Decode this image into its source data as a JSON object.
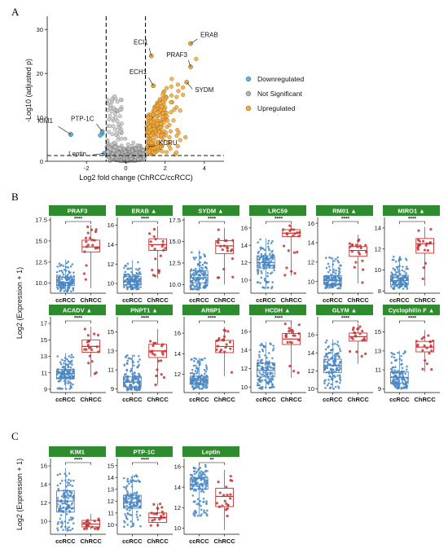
{
  "panels": {
    "a": "A",
    "b": "B",
    "c": "C"
  },
  "colors": {
    "down": "#5bb8dd",
    "ns": "#b0b0b0",
    "up": "#f2a93b",
    "strip": "#2e8b2e",
    "cc_box": "#4a86c2",
    "ch_box": "#c83232",
    "cc_point": "#4a86c2",
    "ch_point": "#c83232"
  },
  "chart_data": [
    {
      "type": "scatter",
      "panel": "A",
      "xlabel": "Log2 fold change (ChRCC/ccRCC)",
      "ylabel": "-Log10 (adjusted p)",
      "xlim": [
        -4,
        5
      ],
      "ylim": [
        0,
        33
      ],
      "x_ticks": [
        -2,
        0,
        2,
        4
      ],
      "y_ticks": [
        0,
        10,
        20,
        30
      ],
      "thresholds": {
        "x": [
          -1,
          1
        ],
        "y": 1.3
      },
      "legend": {
        "placement": "right",
        "items": [
          {
            "label": "Downregulated",
            "color_key": "down"
          },
          {
            "label": "Not Significant",
            "color_key": "ns"
          },
          {
            "label": "Upregulated",
            "color_key": "up"
          }
        ]
      },
      "labeled_points": [
        {
          "label": "ERAB",
          "x": 3.3,
          "y": 26.8
        },
        {
          "label": "ECI1",
          "x": 1.3,
          "y": 24.0
        },
        {
          "label": "PRAF3",
          "x": 3.3,
          "y": 21.5
        },
        {
          "label": "ECH1",
          "x": 1.4,
          "y": 17.2
        },
        {
          "label": "SYDM",
          "x": 3.1,
          "y": 18.0
        },
        {
          "label": "KIM1",
          "x": -2.8,
          "y": 6.1
        },
        {
          "label": "PTP-1C",
          "x": -1.2,
          "y": 6.8
        },
        {
          "label": "KCRU",
          "x": 1.1,
          "y": 3.3
        },
        {
          "label": "Leptin",
          "x": -1.1,
          "y": 1.8
        }
      ]
    },
    {
      "type": "box",
      "panel": "B",
      "ylabel": "Log2 (Expression + 1)",
      "groups": [
        "ccRCC",
        "ChRCC"
      ],
      "facets": [
        {
          "name": "PRAF3",
          "ylim": [
            8.8,
            17.8
          ],
          "ticks": [
            10.0,
            12.5,
            15.0,
            17.5
          ],
          "tick_labels": [
            "10.0",
            "12.5",
            "15.0",
            "17.5"
          ],
          "sig": "****",
          "ccRCC": {
            "min": 9.0,
            "q1": 9.7,
            "median": 10.1,
            "q3": 10.7,
            "max": 12.8
          },
          "ChRCC": {
            "min": 9.4,
            "q1": 13.7,
            "median": 14.3,
            "q3": 15.1,
            "max": 16.9
          }
        },
        {
          "name": "ERAB ▲",
          "ylim": [
            9.0,
            16.8
          ],
          "ticks": [
            10,
            12,
            14,
            16
          ],
          "tick_labels": [
            "10",
            "12",
            "14",
            "16"
          ],
          "sig": "****",
          "ccRCC": {
            "min": 9.4,
            "q1": 9.9,
            "median": 10.2,
            "q3": 10.7,
            "max": 12.4
          },
          "ChRCC": {
            "min": 10.5,
            "q1": 13.4,
            "median": 14.0,
            "q3": 14.6,
            "max": 15.9
          }
        },
        {
          "name": "SYDM ▲",
          "ylim": [
            9.0,
            17.8
          ],
          "ticks": [
            10.0,
            12.5,
            15.0,
            17.5
          ],
          "tick_labels": [
            "10.0",
            "12.5",
            "15.0",
            "17.5"
          ],
          "sig": "****",
          "ccRCC": {
            "min": 9.4,
            "q1": 10.2,
            "median": 10.8,
            "q3": 11.6,
            "max": 14.0
          },
          "ChRCC": {
            "min": 10.0,
            "q1": 13.6,
            "median": 14.5,
            "q3": 15.1,
            "max": 16.6
          }
        },
        {
          "name": "LRC59",
          "ylim": [
            8.5,
            17.2
          ],
          "ticks": [
            10,
            12,
            14,
            16
          ],
          "tick_labels": [
            "10",
            "12",
            "14",
            "16"
          ],
          "sig": "****",
          "ccRCC": {
            "min": 9.0,
            "q1": 11.4,
            "median": 12.0,
            "q3": 12.8,
            "max": 14.8
          },
          "ChRCC": {
            "min": 10.5,
            "q1": 15.0,
            "median": 15.4,
            "q3": 15.8,
            "max": 16.4
          }
        },
        {
          "name": "RM01 ▲",
          "ylim": [
            8.8,
            16.6
          ],
          "ticks": [
            10,
            12,
            14,
            16
          ],
          "tick_labels": [
            "10",
            "12",
            "14",
            "16"
          ],
          "sig": "****",
          "ccRCC": {
            "min": 9.3,
            "q1": 9.7,
            "median": 10.1,
            "q3": 10.6,
            "max": 12.5
          },
          "ChRCC": {
            "min": 9.8,
            "q1": 12.6,
            "median": 13.2,
            "q3": 13.6,
            "max": 14.8
          }
        },
        {
          "name": "MIRO1 ▲",
          "ylim": [
            7.8,
            15.0
          ],
          "ticks": [
            8,
            10,
            12,
            14
          ],
          "tick_labels": [
            "8",
            "10",
            "12",
            "14"
          ],
          "sig": "****",
          "ccRCC": {
            "min": 8.2,
            "q1": 8.6,
            "median": 9.0,
            "q3": 9.5,
            "max": 11.3
          },
          "ChRCC": {
            "min": 8.5,
            "q1": 11.6,
            "median": 12.5,
            "q3": 13.0,
            "max": 14.1
          }
        },
        {
          "name": "ACADV ▲",
          "ylim": [
            8.6,
            17.8
          ],
          "ticks": [
            9,
            11,
            13,
            15,
            17
          ],
          "tick_labels": [
            "9",
            "11",
            "13",
            "15",
            "17"
          ],
          "sig": "****",
          "ccRCC": {
            "min": 9.0,
            "q1": 10.3,
            "median": 10.9,
            "q3": 11.4,
            "max": 13.4
          },
          "ChRCC": {
            "min": 10.5,
            "q1": 13.5,
            "median": 14.2,
            "q3": 15.0,
            "max": 16.6
          }
        },
        {
          "name": "PNPT1 ▲",
          "ylim": [
            8.6,
            16.6
          ],
          "ticks": [
            9,
            11,
            13,
            15
          ],
          "tick_labels": [
            "9",
            "11",
            "13",
            "15"
          ],
          "sig": "****",
          "ccRCC": {
            "min": 8.8,
            "q1": 9.2,
            "median": 9.7,
            "q3": 10.3,
            "max": 12.6
          },
          "ChRCC": {
            "min": 9.4,
            "q1": 12.3,
            "median": 13.0,
            "q3": 13.7,
            "max": 15.3
          }
        },
        {
          "name": "AR6P1",
          "ylim": [
            10.2,
            17.6
          ],
          "ticks": [
            12,
            14,
            16
          ],
          "tick_labels": [
            "12",
            "14",
            "16"
          ],
          "sig": "****",
          "ccRCC": {
            "min": 10.5,
            "q1": 11.0,
            "median": 11.4,
            "q3": 11.8,
            "max": 13.6
          },
          "ChRCC": {
            "min": 11.8,
            "q1": 14.1,
            "median": 14.7,
            "q3": 15.3,
            "max": 16.6
          }
        },
        {
          "name": "HCDH ▲",
          "ylim": [
            9.4,
            17.6
          ],
          "ticks": [
            10,
            12,
            14,
            16
          ],
          "tick_labels": [
            "10",
            "12",
            "14",
            "16"
          ],
          "sig": "****",
          "ccRCC": {
            "min": 9.8,
            "q1": 11.1,
            "median": 11.8,
            "q3": 12.6,
            "max": 14.9
          },
          "ChRCC": {
            "min": 11.0,
            "q1": 14.6,
            "median": 15.2,
            "q3": 15.8,
            "max": 17.0
          }
        },
        {
          "name": "GLYM ▲",
          "ylim": [
            9.6,
            18.0
          ],
          "ticks": [
            10,
            12,
            14,
            16
          ],
          "tick_labels": [
            "10",
            "12",
            "14",
            "16"
          ],
          "sig": "****",
          "ccRCC": {
            "min": 10.0,
            "q1": 11.8,
            "median": 12.6,
            "q3": 13.3,
            "max": 15.5
          },
          "ChRCC": {
            "min": 12.8,
            "q1": 15.3,
            "median": 15.8,
            "q3": 16.2,
            "max": 17.2
          }
        },
        {
          "name": "Cyclophilin F ▲",
          "ylim": [
            8.6,
            16.6
          ],
          "ticks": [
            9,
            11,
            13,
            15
          ],
          "tick_labels": [
            "9",
            "11",
            "13",
            "15"
          ],
          "sig": "****",
          "ccRCC": {
            "min": 9.0,
            "q1": 9.6,
            "median": 10.2,
            "q3": 10.8,
            "max": 13.0
          },
          "ChRCC": {
            "min": 10.8,
            "q1": 12.9,
            "median": 13.4,
            "q3": 14.0,
            "max": 15.2
          }
        }
      ]
    },
    {
      "type": "box",
      "panel": "C",
      "ylabel": "Log2 (Expression + 1)",
      "groups": [
        "ccRCC",
        "ChRCC"
      ],
      "facets": [
        {
          "name": "KIM1",
          "ylim": [
            8.6,
            16.8
          ],
          "ticks": [
            10,
            12,
            14,
            16
          ],
          "tick_labels": [
            "10",
            "12",
            "14",
            "16"
          ],
          "sig": "****",
          "ccRCC": {
            "min": 9.0,
            "q1": 11.0,
            "median": 12.2,
            "q3": 13.3,
            "max": 15.8
          },
          "ChRCC": {
            "min": 9.1,
            "q1": 9.4,
            "median": 9.7,
            "q3": 10.1,
            "max": 10.8
          }
        },
        {
          "name": "PTP-1C",
          "ylim": [
            9.2,
            15.6
          ],
          "ticks": [
            10,
            11,
            12,
            13,
            14,
            15
          ],
          "tick_labels": [
            "10",
            "11",
            "12",
            "13",
            "14",
            "15"
          ],
          "sig": "****",
          "ccRCC": {
            "min": 9.8,
            "q1": 11.4,
            "median": 11.9,
            "q3": 12.5,
            "max": 14.2
          },
          "ChRCC": {
            "min": 9.8,
            "q1": 10.2,
            "median": 10.6,
            "q3": 11.0,
            "max": 11.8
          }
        },
        {
          "name": "Leptin",
          "ylim": [
            9.4,
            16.8
          ],
          "ticks": [
            10,
            12,
            14,
            16
          ],
          "tick_labels": [
            "10",
            "12",
            "14",
            "16"
          ],
          "sig": "**",
          "ccRCC": {
            "min": 11.2,
            "q1": 13.8,
            "median": 14.3,
            "q3": 14.9,
            "max": 16.2
          },
          "ChRCC": {
            "min": 9.8,
            "q1": 12.1,
            "median": 13.1,
            "q3": 13.9,
            "max": 15.7
          }
        }
      ]
    }
  ]
}
